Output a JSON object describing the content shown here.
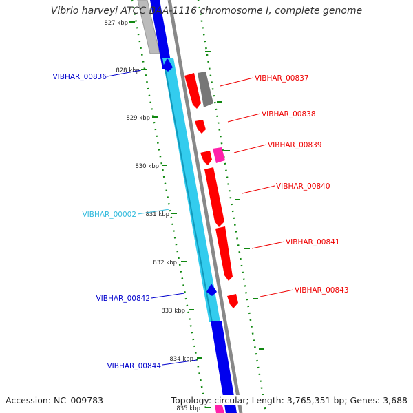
{
  "title": "Vibrio harveyi ATCC BAA-1116 chromosome I, complete genome",
  "footer": {
    "accession": "Accession: NC_009783",
    "summary": "Topology: circular; Length: 3,765,351 bp; Genes: 3,688"
  },
  "colors": {
    "cds_forward": "#ff0000",
    "cds_reverse": "#0000ee",
    "cds_reverse_light": "#33ccee",
    "cds_grey": "#777777",
    "pink": "#ff22aa",
    "tick_dots": "#118811",
    "backbone": "#888888"
  },
  "ticks": [
    {
      "label": "827 kbp"
    },
    {
      "label": "828 kbp"
    },
    {
      "label": "829 kbp"
    },
    {
      "label": "830 kbp"
    },
    {
      "label": "831 kbp"
    },
    {
      "label": "832 kbp"
    },
    {
      "label": "833 kbp"
    },
    {
      "label": "834 kbp"
    },
    {
      "label": "835 kbp"
    }
  ],
  "genes": {
    "left": [
      {
        "id": "VIBHAR_00836",
        "color": "#0000cc"
      },
      {
        "id": "VIBHAR_00002",
        "color": "#33bbdd"
      },
      {
        "id": "VIBHAR_00842",
        "color": "#0000cc"
      },
      {
        "id": "VIBHAR_00844",
        "color": "#0000cc"
      }
    ],
    "right": [
      {
        "id": "VIBHAR_00837",
        "color": "#ee0000"
      },
      {
        "id": "VIBHAR_00838",
        "color": "#ee0000"
      },
      {
        "id": "VIBHAR_00839",
        "color": "#ee0000"
      },
      {
        "id": "VIBHAR_00840",
        "color": "#ee0000"
      },
      {
        "id": "VIBHAR_00841",
        "color": "#ee0000"
      },
      {
        "id": "VIBHAR_00843",
        "color": "#ee0000"
      }
    ]
  }
}
